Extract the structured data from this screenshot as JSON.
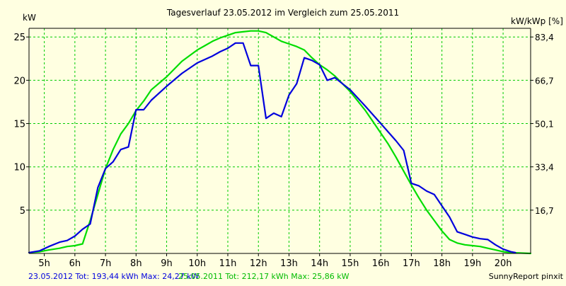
{
  "chart_data": {
    "type": "line",
    "title": "Tagesverlauf 23.05.2012 im Vergleich zum 25.05.2011",
    "ylabel_left": "kW",
    "ylabel_right": "kW/kWp [%]",
    "xlim": [
      4.5,
      20.9
    ],
    "ylim": [
      0,
      26
    ],
    "y_ticks": [
      {
        "value": 5,
        "label": "5"
      },
      {
        "value": 10,
        "label": "10"
      },
      {
        "value": 15,
        "label": "15"
      },
      {
        "value": 20,
        "label": "20"
      },
      {
        "value": 25,
        "label": "25"
      }
    ],
    "y2_ticks": [
      {
        "value": 5,
        "label": "16,7"
      },
      {
        "value": 10,
        "label": "33,4"
      },
      {
        "value": 15,
        "label": "50,1"
      },
      {
        "value": 20,
        "label": "66,7"
      },
      {
        "value": 25,
        "label": "83,4"
      }
    ],
    "x_ticks": [
      {
        "value": 5,
        "label": "5h"
      },
      {
        "value": 6,
        "label": "6h"
      },
      {
        "value": 7,
        "label": "7h"
      },
      {
        "value": 8,
        "label": "8h"
      },
      {
        "value": 9,
        "label": "9h"
      },
      {
        "value": 10,
        "label": "10h"
      },
      {
        "value": 11,
        "label": "11h"
      },
      {
        "value": 12,
        "label": "12h"
      },
      {
        "value": 13,
        "label": "13h"
      },
      {
        "value": 14,
        "label": "14h"
      },
      {
        "value": 15,
        "label": "15h"
      },
      {
        "value": 16,
        "label": "16h"
      },
      {
        "value": 17,
        "label": "17h"
      },
      {
        "value": 18,
        "label": "18h"
      },
      {
        "value": 19,
        "label": "19h"
      },
      {
        "value": 20,
        "label": "20h"
      }
    ],
    "grid": true,
    "series": [
      {
        "name": "23.05.2012",
        "color": "#0000dd",
        "points": [
          [
            4.5,
            0.1
          ],
          [
            4.85,
            0.3
          ],
          [
            5.15,
            0.8
          ],
          [
            5.5,
            1.3
          ],
          [
            5.75,
            1.5
          ],
          [
            6.0,
            2.0
          ],
          [
            6.25,
            2.8
          ],
          [
            6.5,
            3.4
          ],
          [
            6.75,
            7.6
          ],
          [
            7.0,
            9.8
          ],
          [
            7.25,
            10.6
          ],
          [
            7.5,
            12.0
          ],
          [
            7.75,
            12.3
          ],
          [
            8.0,
            16.6
          ],
          [
            8.25,
            16.6
          ],
          [
            8.5,
            17.7
          ],
          [
            9.0,
            19.3
          ],
          [
            9.5,
            20.8
          ],
          [
            10.0,
            22.0
          ],
          [
            10.5,
            22.8
          ],
          [
            10.75,
            23.3
          ],
          [
            11.0,
            23.7
          ],
          [
            11.25,
            24.3
          ],
          [
            11.5,
            24.3
          ],
          [
            11.75,
            21.7
          ],
          [
            12.0,
            21.7
          ],
          [
            12.25,
            15.6
          ],
          [
            12.5,
            16.2
          ],
          [
            12.75,
            15.8
          ],
          [
            13.0,
            18.3
          ],
          [
            13.25,
            19.6
          ],
          [
            13.5,
            22.6
          ],
          [
            13.75,
            22.3
          ],
          [
            14.0,
            21.8
          ],
          [
            14.25,
            20.0
          ],
          [
            14.5,
            20.3
          ],
          [
            15.0,
            18.9
          ],
          [
            15.5,
            17.0
          ],
          [
            16.0,
            15.0
          ],
          [
            16.5,
            13.0
          ],
          [
            16.75,
            11.9
          ],
          [
            17.0,
            8.1
          ],
          [
            17.25,
            7.8
          ],
          [
            17.5,
            7.2
          ],
          [
            17.75,
            6.8
          ],
          [
            18.0,
            5.5
          ],
          [
            18.25,
            4.2
          ],
          [
            18.5,
            2.5
          ],
          [
            18.75,
            2.2
          ],
          [
            19.0,
            1.9
          ],
          [
            19.25,
            1.7
          ],
          [
            19.5,
            1.6
          ],
          [
            19.75,
            1.0
          ],
          [
            20.0,
            0.5
          ],
          [
            20.25,
            0.2
          ],
          [
            20.4,
            0.1
          ]
        ]
      },
      {
        "name": "25.05.2011",
        "color": "#00dd00",
        "points": [
          [
            4.5,
            0.1
          ],
          [
            4.85,
            0.2
          ],
          [
            5.15,
            0.4
          ],
          [
            5.5,
            0.6
          ],
          [
            5.75,
            0.8
          ],
          [
            6.0,
            0.9
          ],
          [
            6.25,
            1.1
          ],
          [
            6.5,
            3.8
          ],
          [
            6.75,
            6.8
          ],
          [
            7.0,
            9.8
          ],
          [
            7.25,
            12.0
          ],
          [
            7.5,
            13.8
          ],
          [
            7.75,
            15.0
          ],
          [
            8.0,
            16.5
          ],
          [
            8.25,
            17.6
          ],
          [
            8.5,
            18.9
          ],
          [
            9.0,
            20.4
          ],
          [
            9.5,
            22.2
          ],
          [
            10.0,
            23.5
          ],
          [
            10.25,
            24.0
          ],
          [
            10.5,
            24.5
          ],
          [
            10.75,
            24.9
          ],
          [
            11.0,
            25.2
          ],
          [
            11.25,
            25.5
          ],
          [
            11.5,
            25.6
          ],
          [
            11.75,
            25.7
          ],
          [
            12.0,
            25.7
          ],
          [
            12.25,
            25.5
          ],
          [
            12.5,
            25.0
          ],
          [
            12.75,
            24.5
          ],
          [
            13.0,
            24.2
          ],
          [
            13.25,
            23.9
          ],
          [
            13.5,
            23.5
          ],
          [
            13.75,
            22.6
          ],
          [
            14.0,
            21.8
          ],
          [
            14.25,
            21.2
          ],
          [
            14.5,
            20.5
          ],
          [
            14.75,
            19.6
          ],
          [
            15.0,
            18.7
          ],
          [
            15.25,
            17.6
          ],
          [
            15.5,
            16.5
          ],
          [
            15.75,
            15.2
          ],
          [
            16.0,
            13.9
          ],
          [
            16.25,
            12.6
          ],
          [
            16.5,
            11.1
          ],
          [
            16.75,
            9.5
          ],
          [
            17.0,
            7.9
          ],
          [
            17.25,
            6.4
          ],
          [
            17.5,
            5.0
          ],
          [
            17.75,
            3.8
          ],
          [
            18.0,
            2.6
          ],
          [
            18.25,
            1.6
          ],
          [
            18.5,
            1.2
          ],
          [
            18.75,
            1.0
          ],
          [
            19.0,
            0.9
          ],
          [
            19.25,
            0.8
          ],
          [
            19.5,
            0.6
          ],
          [
            19.75,
            0.4
          ],
          [
            20.0,
            0.2
          ],
          [
            20.25,
            0.1
          ],
          [
            20.9,
            0.0
          ]
        ]
      }
    ],
    "footer": {
      "series1_text": "23.05.2012 Tot: 193,44 kWh Max: 24,27 kW",
      "series2_text": "25.05.2011 Tot: 212,17 kWh Max: 25,86 kW",
      "credit": "SunnyReport pinxit"
    }
  }
}
